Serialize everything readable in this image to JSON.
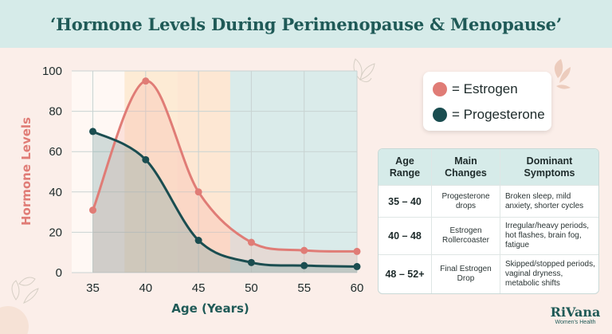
{
  "page": {
    "title": "‘Hormone Levels During Perimenopause & Menopause’"
  },
  "legend": {
    "estrogen_label": "= Estrogen",
    "progesterone_label": "= Progesterone"
  },
  "colors": {
    "estrogen": "#e07c76",
    "progesterone": "#1a4d50",
    "header_bg": "#d6ebe9",
    "title": "#1f5a57",
    "axis_title": "#1f5a57",
    "ylabel": "#e07c76"
  },
  "chart_data": {
    "type": "line",
    "title": "",
    "xlabel": "Age (Years)",
    "ylabel": "Hormone Levels",
    "xlim": [
      33,
      60
    ],
    "ylim": [
      0,
      100
    ],
    "xticks": [
      35,
      40,
      45,
      50,
      55,
      60
    ],
    "yticks": [
      0,
      20,
      40,
      60,
      80,
      100
    ],
    "grid": true,
    "legend_position": "top-right",
    "phase_bands": [
      {
        "from": 38,
        "to": 43,
        "color": "#fde9cf"
      },
      {
        "from": 43,
        "to": 48,
        "color": "#fde4cc"
      },
      {
        "from": 48,
        "to": 60,
        "color": "#d3e9e7"
      }
    ],
    "series": [
      {
        "name": "Estrogen",
        "x": [
          35,
          40,
          45,
          50,
          55,
          60
        ],
        "values": [
          31,
          95,
          40,
          15,
          11,
          10.5
        ]
      },
      {
        "name": "Progesterone",
        "x": [
          35,
          40,
          45,
          50,
          55,
          60
        ],
        "values": [
          70,
          56,
          16,
          5,
          3.5,
          3
        ]
      }
    ]
  },
  "table": {
    "headers": [
      "Age\nRange",
      "Main\nChanges",
      "Dominant\nSymptoms"
    ],
    "rows": [
      {
        "range": "35 – 40",
        "changes": "Progesterone drops",
        "symptoms": "Broken sleep, mild anxiety, shorter cycles"
      },
      {
        "range": "40 – 48",
        "changes": "Estrogen Rollercoaster",
        "symptoms": "Irregular/heavy periods, hot flashes, brain fog, fatigue"
      },
      {
        "range": "48 – 52+",
        "changes": "Final Estrogen Drop",
        "symptoms": "Skipped/stopped periods, vaginal dryness, metabolic shifts"
      }
    ]
  },
  "logo": {
    "name": "RiVana",
    "tagline": "Women's Health"
  }
}
